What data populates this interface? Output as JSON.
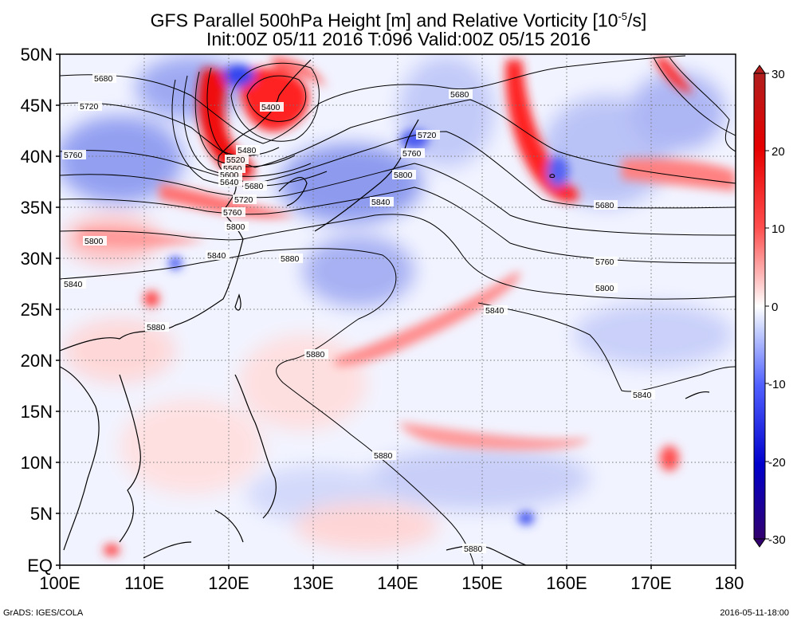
{
  "title": {
    "line1": "GFS Parallel 500hPa Height [m] and Relative Vorticity [10",
    "line1_exp": "-5",
    "line1_end": "/s]",
    "line2": "Init:00Z 05/11 2016 T:096 Valid:00Z 05/15 2016"
  },
  "axes": {
    "lat_labels": [
      "50N",
      "45N",
      "40N",
      "35N",
      "30N",
      "25N",
      "20N",
      "15N",
      "10N",
      "5N",
      "EQ"
    ],
    "lon_labels": [
      "100E",
      "110E",
      "120E",
      "130E",
      "140E",
      "150E",
      "160E",
      "170E",
      "180"
    ]
  },
  "colorbar": {
    "labels": [
      "30",
      "20",
      "10",
      "0",
      "-10",
      "-20",
      "-30"
    ],
    "colors": [
      "#b01e1e",
      "#e60000",
      "#ff4d4d",
      "#ffb3b3",
      "#ffffff",
      "#b3c3ff",
      "#5060ff",
      "#0000cc",
      "#32006e"
    ]
  },
  "contour_labels": [
    {
      "text": "5680",
      "id": "c1"
    },
    {
      "text": "5720",
      "id": "c2"
    },
    {
      "text": "5760",
      "id": "c3"
    },
    {
      "text": "5800",
      "id": "c4"
    },
    {
      "text": "5840",
      "id": "c5"
    },
    {
      "text": "5880",
      "id": "c6"
    },
    {
      "text": "5400",
      "id": "c7"
    },
    {
      "text": "5480",
      "id": "c8"
    },
    {
      "text": "5520",
      "id": "c9"
    },
    {
      "text": "5560",
      "id": "c10"
    },
    {
      "text": "5600",
      "id": "c11"
    },
    {
      "text": "5640",
      "id": "c12"
    },
    {
      "text": "5680",
      "id": "c13"
    },
    {
      "text": "5720",
      "id": "c14"
    },
    {
      "text": "5760",
      "id": "c15"
    },
    {
      "text": "5800",
      "id": "c16"
    },
    {
      "text": "5840",
      "id": "c17"
    },
    {
      "text": "5880",
      "id": "c18"
    },
    {
      "text": "5680",
      "id": "c19"
    },
    {
      "text": "5720",
      "id": "c20"
    },
    {
      "text": "5760",
      "id": "c21"
    },
    {
      "text": "5800",
      "id": "c22"
    },
    {
      "text": "5840",
      "id": "c23"
    },
    {
      "text": "5880",
      "id": "c24"
    },
    {
      "text": "5680",
      "id": "c25"
    },
    {
      "text": "5760",
      "id": "c26"
    },
    {
      "text": "5800",
      "id": "c27"
    },
    {
      "text": "5840",
      "id": "c28"
    },
    {
      "text": "5840",
      "id": "c29"
    },
    {
      "text": "5880",
      "id": "c30"
    },
    {
      "text": "5880",
      "id": "c31"
    },
    {
      "text": "5880",
      "id": "c32"
    }
  ],
  "footer": {
    "left": "GrADS: IGES/COLA",
    "right": "2016-05-11-18:00"
  }
}
